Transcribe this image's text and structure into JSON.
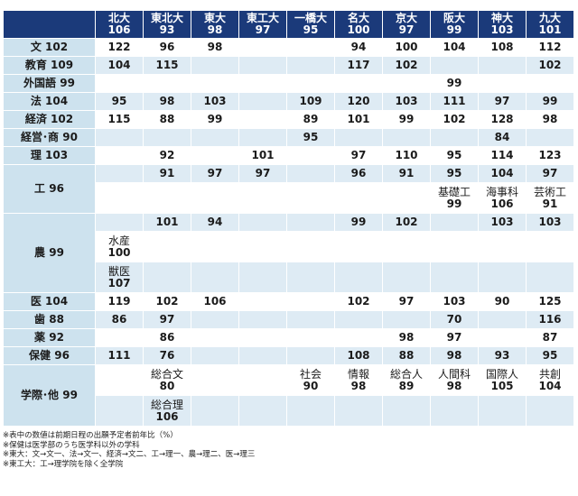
{
  "columns": [
    {
      "name": "北大",
      "value": "106"
    },
    {
      "name": "東北大",
      "value": "93"
    },
    {
      "name": "東大",
      "value": "98"
    },
    {
      "name": "東工大",
      "value": "97"
    },
    {
      "name": "一橋大",
      "value": "95"
    },
    {
      "name": "名大",
      "value": "100"
    },
    {
      "name": "京大",
      "value": "97"
    },
    {
      "name": "阪大",
      "value": "99"
    },
    {
      "name": "神大",
      "value": "103"
    },
    {
      "name": "九大",
      "value": "101"
    }
  ],
  "rows": [
    {
      "label": "文 102",
      "cells": [
        "122",
        "96",
        "98",
        "",
        "",
        "94",
        "100",
        "104",
        "108",
        "112"
      ]
    },
    {
      "label": "教育 109",
      "cells": [
        "104",
        "115",
        "",
        "",
        "",
        "117",
        "102",
        "",
        "",
        "102"
      ]
    },
    {
      "label": "外国語 99",
      "cells": [
        "",
        "",
        "",
        "",
        "",
        "",
        "",
        "99",
        "",
        ""
      ]
    },
    {
      "label": "法 104",
      "cells": [
        "95",
        "98",
        "103",
        "",
        "109",
        "120",
        "103",
        "111",
        "97",
        "99"
      ]
    },
    {
      "label": "経済 102",
      "cells": [
        "115",
        "88",
        "99",
        "",
        "89",
        "101",
        "99",
        "102",
        "128",
        "98"
      ]
    },
    {
      "label": "経営･商 90",
      "cells": [
        "",
        "",
        "",
        "",
        "95",
        "",
        "",
        "",
        "84",
        ""
      ]
    },
    {
      "label": "理 103",
      "cells": [
        "",
        "92",
        "",
        "101",
        "",
        "97",
        "110",
        "95",
        "114",
        "123"
      ]
    }
  ],
  "eng": {
    "label": "工 96",
    "row1": [
      "",
      "91",
      "97",
      "97",
      "",
      "96",
      "91",
      "95",
      "104",
      "97"
    ],
    "row2": [
      {
        "sub": "",
        "val": ""
      },
      {
        "sub": "",
        "val": ""
      },
      {
        "sub": "",
        "val": ""
      },
      {
        "sub": "",
        "val": ""
      },
      {
        "sub": "",
        "val": ""
      },
      {
        "sub": "",
        "val": ""
      },
      {
        "sub": "",
        "val": ""
      },
      {
        "sub": "基礎工",
        "val": "99"
      },
      {
        "sub": "海事科",
        "val": "106"
      },
      {
        "sub": "芸術工",
        "val": "91"
      }
    ]
  },
  "agri": {
    "label": "農 99",
    "row1": [
      "",
      "101",
      "94",
      "",
      "",
      "99",
      "102",
      "",
      "103",
      "103"
    ],
    "row2_sub": "水産",
    "row2_val": "100",
    "row3_sub": "獣医",
    "row3_val": "107"
  },
  "rows2": [
    {
      "label": "医 104",
      "cells": [
        "119",
        "102",
        "106",
        "",
        "",
        "102",
        "97",
        "103",
        "90",
        "125"
      ]
    },
    {
      "label": "歯 88",
      "cells": [
        "86",
        "97",
        "",
        "",
        "",
        "",
        "",
        "70",
        "",
        "116"
      ]
    },
    {
      "label": "薬 92",
      "cells": [
        "",
        "86",
        "",
        "",
        "",
        "",
        "98",
        "97",
        "",
        "87"
      ]
    },
    {
      "label": "保健 96",
      "cells": [
        "111",
        "76",
        "",
        "",
        "",
        "108",
        "88",
        "98",
        "93",
        "95"
      ]
    }
  ],
  "intl": {
    "label": "学際･他 99",
    "row1": [
      {
        "sub": "",
        "val": ""
      },
      {
        "sub": "総合文",
        "val": "80"
      },
      {
        "sub": "",
        "val": ""
      },
      {
        "sub": "",
        "val": ""
      },
      {
        "sub": "社会",
        "val": "90"
      },
      {
        "sub": "情報",
        "val": "98"
      },
      {
        "sub": "総合人",
        "val": "89"
      },
      {
        "sub": "人間科",
        "val": "98"
      },
      {
        "sub": "国際人",
        "val": "105"
      },
      {
        "sub": "共創",
        "val": "104"
      }
    ],
    "row2_sub": "総合理",
    "row2_val": "106"
  },
  "notes": [
    "※表中の数値は前期日程の出願予定者前年比（%）",
    "※保健は医学部のうち医学科以外の学科",
    "※東大：文→文一、法→文一、経済→文二、工→理一、農→理二、医→理三",
    "※東工大：工→理学院を除く全学院"
  ]
}
